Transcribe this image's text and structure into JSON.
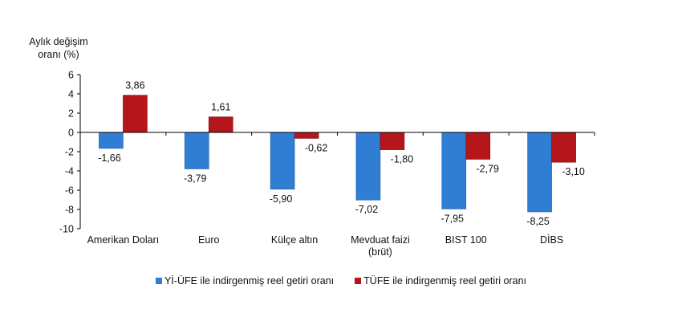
{
  "chart_data": {
    "type": "bar",
    "title": "",
    "ylabel": "Aylık değişim oranı (%)",
    "xlabel": "",
    "ylim": [
      -10,
      6
    ],
    "yticks": [
      6,
      4,
      2,
      0,
      -2,
      -4,
      -6,
      -8,
      -10
    ],
    "grid": false,
    "legend_position": "bottom",
    "categories": [
      "Amerikan Doları",
      "Euro",
      "Külçe altın",
      "Mevduat faizi (brüt)",
      "BIST 100",
      "DİBS"
    ],
    "category_lines": [
      [
        "Amerikan Doları"
      ],
      [
        "Euro"
      ],
      [
        "Külçe altın"
      ],
      [
        "Mevduat faizi",
        "(brüt)"
      ],
      [
        "BIST 100"
      ],
      [
        "DİBS"
      ]
    ],
    "series": [
      {
        "name": "Yİ-ÜFE ile indirgenmiş reel getiri oranı",
        "color": "#2f7ed3",
        "values": [
          -1.66,
          -3.79,
          -5.9,
          -7.02,
          -7.95,
          -8.25
        ],
        "labels": [
          "-1,66",
          "-3,79",
          "-5,90",
          "-7,02",
          "-7,95",
          "-8,25"
        ]
      },
      {
        "name": "TÜFE ile indirgenmiş reel getiri oranı",
        "color": "#b5161b",
        "values": [
          3.86,
          1.61,
          -0.62,
          -1.8,
          -2.79,
          -3.1
        ],
        "labels": [
          "3,86",
          "1,61",
          "-0,62",
          "-1,80",
          "-2,79",
          "-3,10"
        ]
      }
    ]
  },
  "ylabel_lines": [
    "Aylık değişim",
    "oranı (%)"
  ]
}
